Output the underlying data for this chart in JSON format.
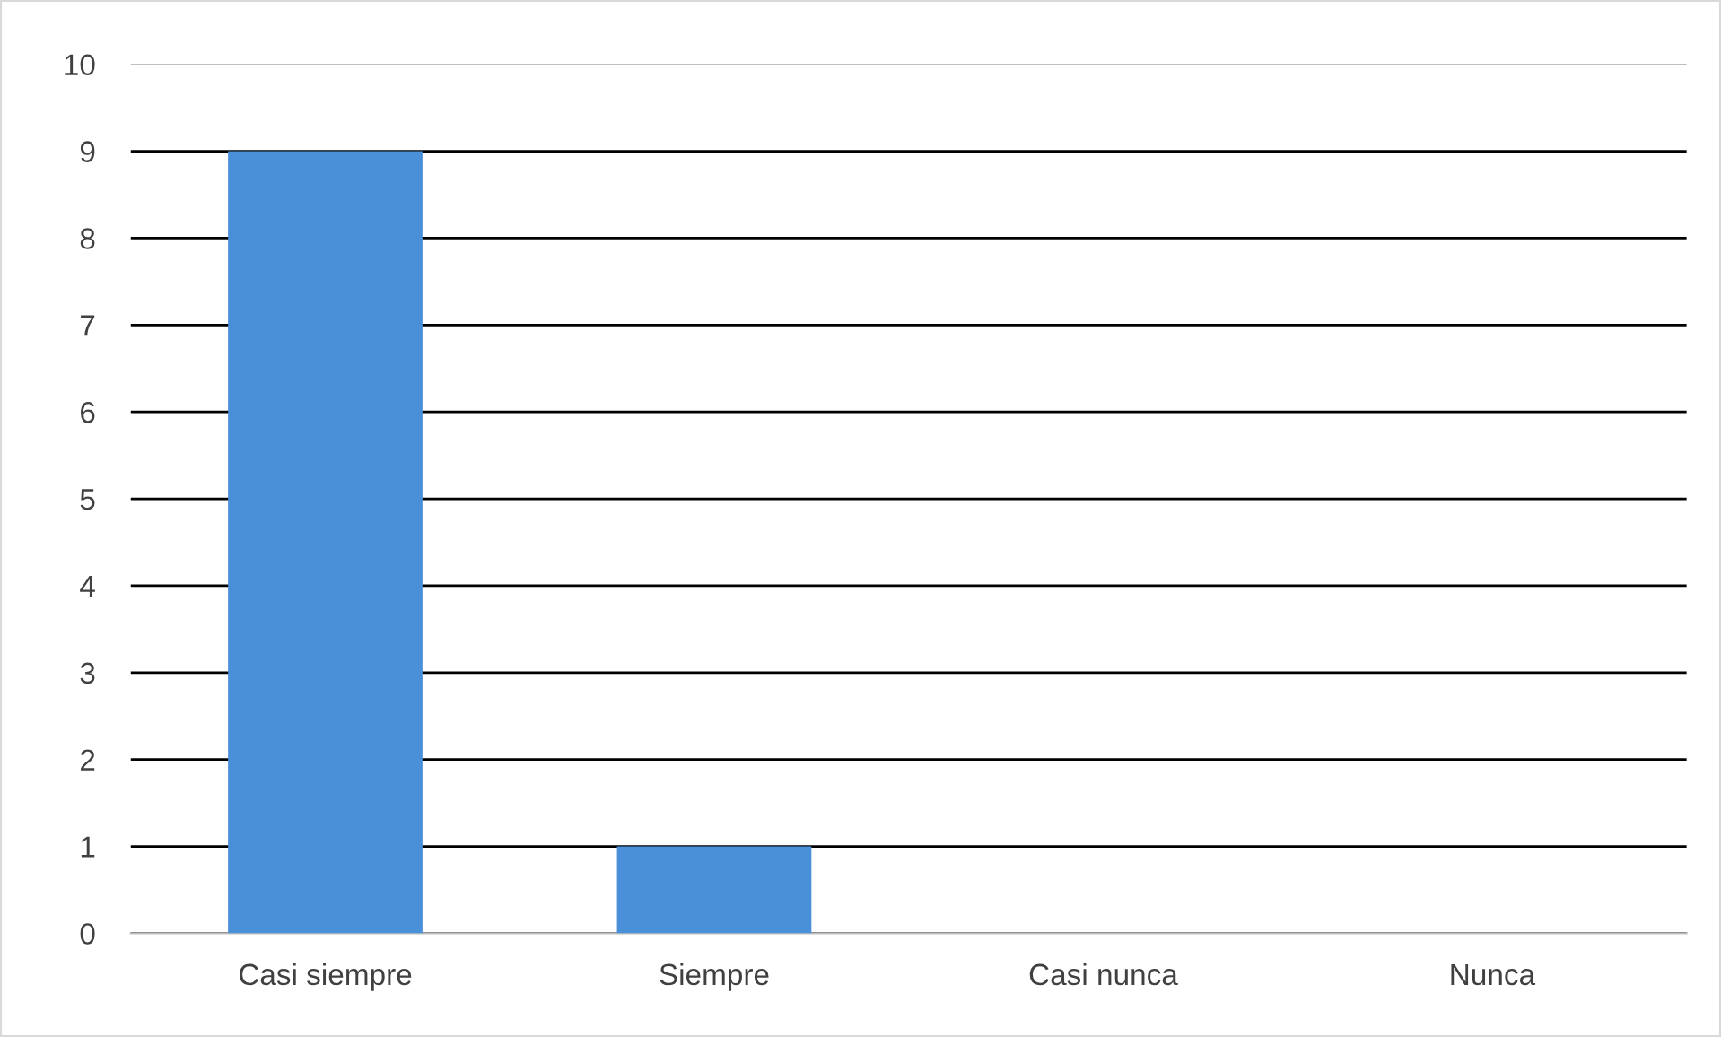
{
  "chart_data": {
    "type": "bar",
    "categories": [
      "Casi siempre",
      "Siempre",
      "Casi nunca",
      "Nunca"
    ],
    "values": [
      9,
      1,
      0,
      0
    ],
    "color": "#4a90d9",
    "ylim": [
      0,
      10
    ],
    "yticks": [
      0,
      1,
      2,
      3,
      4,
      5,
      6,
      7,
      8,
      9,
      10
    ],
    "grid": "y"
  }
}
